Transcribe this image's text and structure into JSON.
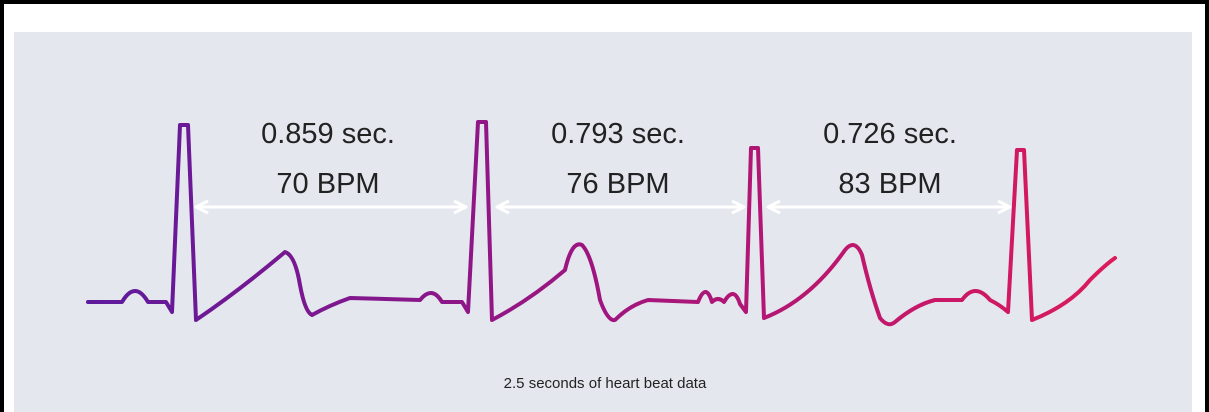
{
  "intervals": [
    {
      "duration": "0.859 sec.",
      "rate": "70 BPM"
    },
    {
      "duration": "0.793 sec.",
      "rate": "76 BPM"
    },
    {
      "duration": "0.726 sec.",
      "rate": "83 BPM"
    }
  ],
  "caption": "2.5 seconds of heart beat data"
}
